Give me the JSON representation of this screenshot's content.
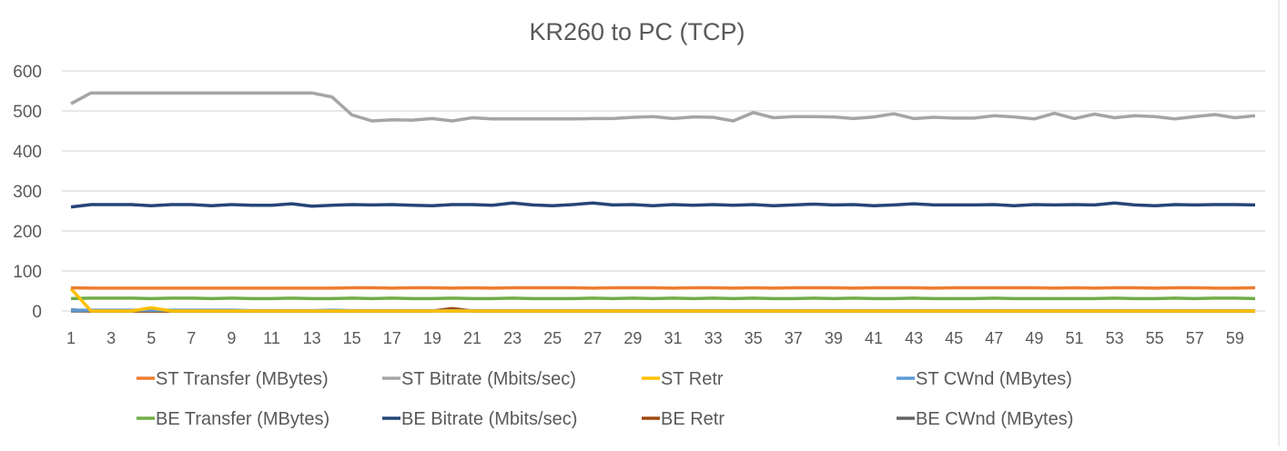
{
  "chart_data": {
    "type": "line",
    "title": "KR260 to PC (TCP)",
    "xlabel": "",
    "ylabel": "",
    "ylim": [
      0,
      600
    ],
    "yticks": [
      0,
      100,
      200,
      300,
      400,
      500,
      600
    ],
    "x": [
      1,
      2,
      3,
      4,
      5,
      6,
      7,
      8,
      9,
      10,
      11,
      12,
      13,
      14,
      15,
      16,
      17,
      18,
      19,
      20,
      21,
      22,
      23,
      24,
      25,
      26,
      27,
      28,
      29,
      30,
      31,
      32,
      33,
      34,
      35,
      36,
      37,
      38,
      39,
      40,
      41,
      42,
      43,
      44,
      45,
      46,
      47,
      48,
      49,
      50,
      51,
      52,
      53,
      54,
      55,
      56,
      57,
      58,
      59,
      60
    ],
    "xticks": [
      1,
      3,
      5,
      7,
      9,
      11,
      13,
      15,
      17,
      19,
      21,
      23,
      25,
      27,
      29,
      31,
      33,
      35,
      37,
      39,
      41,
      43,
      45,
      47,
      49,
      51,
      53,
      55,
      57,
      59
    ],
    "grid": true,
    "legend_position": "bottom",
    "series": [
      {
        "name": "ST Transfer (MBytes)",
        "color": "#ED7D31",
        "values": [
          58,
          57,
          57,
          57,
          57,
          57,
          57,
          57,
          57,
          57,
          57,
          57,
          57,
          57,
          58,
          58,
          57,
          58,
          58,
          57,
          58,
          57,
          58,
          58,
          58,
          58,
          57,
          58,
          58,
          58,
          57,
          58,
          58,
          57,
          58,
          57,
          58,
          58,
          58,
          57,
          58,
          58,
          58,
          57,
          58,
          58,
          58,
          58,
          58,
          57,
          58,
          57,
          58,
          58,
          57,
          58,
          58,
          57,
          57,
          58
        ]
      },
      {
        "name": "ST Bitrate (Mbits/sec)",
        "color": "#A5A5A5",
        "values": [
          518,
          545,
          545,
          545,
          545,
          545,
          545,
          545,
          545,
          545,
          545,
          545,
          545,
          535,
          490,
          475,
          478,
          477,
          481,
          475,
          483,
          480,
          480,
          480,
          480,
          480,
          481,
          481,
          484,
          486,
          481,
          485,
          484,
          475,
          496,
          483,
          486,
          486,
          485,
          481,
          485,
          493,
          481,
          484,
          482,
          482,
          488,
          485,
          480,
          494,
          481,
          492,
          483,
          488,
          486,
          480,
          486,
          491,
          483,
          488
        ]
      },
      {
        "name": "ST Retr",
        "color": "#FFC000",
        "values": [
          56,
          0,
          0,
          0,
          8,
          0,
          0,
          0,
          0,
          0,
          0,
          0,
          0,
          0,
          0,
          0,
          0,
          0,
          0,
          0,
          0,
          0,
          0,
          0,
          0,
          0,
          0,
          0,
          0,
          0,
          0,
          0,
          0,
          0,
          0,
          0,
          0,
          0,
          0,
          0,
          0,
          0,
          0,
          0,
          0,
          0,
          0,
          0,
          0,
          0,
          0,
          0,
          0,
          0,
          0,
          0,
          0,
          0,
          0,
          0
        ]
      },
      {
        "name": "ST CWnd (MBytes)",
        "color": "#5B9BD5",
        "values": [
          2,
          2,
          2,
          2,
          2,
          2,
          2,
          2,
          2,
          1,
          1,
          1,
          1,
          2,
          1,
          1,
          1,
          1,
          1,
          1,
          1,
          1,
          1,
          1,
          1,
          1,
          1,
          1,
          1,
          1,
          1,
          1,
          1,
          1,
          1,
          1,
          1,
          1,
          1,
          1,
          1,
          1,
          1,
          1,
          1,
          1,
          1,
          1,
          1,
          1,
          1,
          1,
          1,
          1,
          1,
          1,
          1,
          1,
          1,
          1
        ]
      },
      {
        "name": "BE Transfer (MBytes)",
        "color": "#70AD47",
        "values": [
          31,
          32,
          32,
          32,
          31,
          32,
          32,
          31,
          32,
          31,
          31,
          32,
          31,
          31,
          32,
          31,
          32,
          31,
          31,
          32,
          31,
          31,
          32,
          31,
          31,
          31,
          32,
          31,
          32,
          31,
          32,
          31,
          32,
          31,
          32,
          31,
          31,
          32,
          31,
          32,
          31,
          31,
          32,
          31,
          31,
          31,
          32,
          31,
          31,
          31,
          31,
          31,
          32,
          31,
          31,
          32,
          31,
          32,
          32,
          31
        ]
      },
      {
        "name": "BE Bitrate (Mbits/sec)",
        "color": "#264478",
        "values": [
          260,
          266,
          266,
          266,
          263,
          266,
          266,
          263,
          266,
          264,
          264,
          268,
          262,
          264,
          266,
          265,
          266,
          264,
          263,
          266,
          266,
          264,
          270,
          265,
          263,
          266,
          270,
          265,
          266,
          263,
          266,
          264,
          266,
          264,
          266,
          263,
          265,
          267,
          265,
          266,
          263,
          265,
          268,
          265,
          265,
          265,
          266,
          263,
          266,
          265,
          266,
          265,
          270,
          265,
          263,
          266,
          265,
          266,
          266,
          265
        ]
      },
      {
        "name": "BE Retr",
        "color": "#9E480E",
        "values": [
          3,
          0,
          0,
          0,
          0,
          0,
          0,
          0,
          0,
          0,
          0,
          0,
          0,
          0,
          0,
          0,
          0,
          0,
          0,
          6,
          0,
          0,
          0,
          0,
          0,
          0,
          0,
          0,
          0,
          0,
          0,
          0,
          0,
          0,
          0,
          0,
          0,
          0,
          0,
          0,
          0,
          0,
          0,
          0,
          0,
          0,
          0,
          0,
          0,
          0,
          0,
          0,
          0,
          0,
          0,
          0,
          0,
          0,
          0,
          0
        ]
      },
      {
        "name": "BE CWnd (MBytes)",
        "color": "#636363",
        "values": [
          0,
          0,
          0,
          0,
          0,
          0,
          0,
          0,
          0,
          0,
          0,
          0,
          0,
          0,
          0,
          0,
          0,
          0,
          0,
          0,
          0,
          0,
          0,
          0,
          0,
          0,
          0,
          0,
          0,
          0,
          0,
          0,
          0,
          0,
          0,
          0,
          0,
          0,
          0,
          0,
          0,
          0,
          0,
          0,
          0,
          0,
          0,
          0,
          0,
          0,
          0,
          0,
          0,
          0,
          0,
          0,
          0,
          0,
          0,
          0
        ]
      }
    ]
  }
}
